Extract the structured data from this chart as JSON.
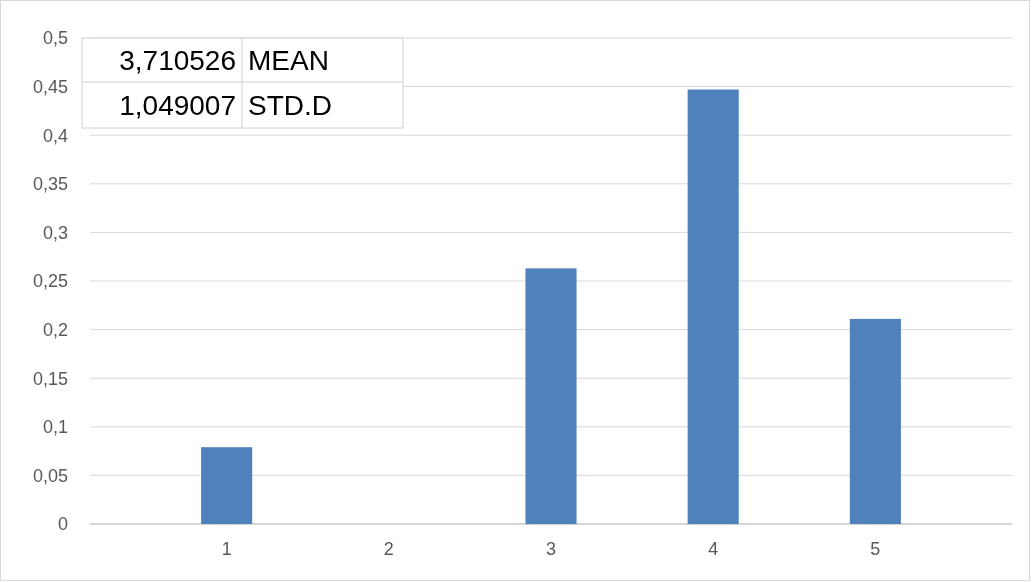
{
  "chart_data": {
    "type": "bar",
    "categories": [
      "1",
      "2",
      "3",
      "4",
      "5"
    ],
    "values": [
      0.079,
      0,
      0.263,
      0.447,
      0.211
    ],
    "color": "#4f81bd",
    "ylim": [
      0,
      0.5
    ],
    "yticks": [
      0,
      {
        "value": 0.05,
        "label": "0,05"
      },
      {
        "value": 0.1,
        "label": "0,1"
      },
      {
        "value": 0.15,
        "label": "0,15"
      },
      {
        "value": 0.2,
        "label": "0,2"
      },
      {
        "value": 0.25,
        "label": "0,25"
      },
      {
        "value": 0.3,
        "label": "0,3"
      },
      {
        "value": 0.35,
        "label": "0,35"
      },
      {
        "value": 0.4,
        "label": "0,4"
      },
      {
        "value": 0.45,
        "label": "0,45"
      },
      {
        "value": 0.5,
        "label": "0,5"
      }
    ],
    "grid": "y",
    "annotations": [
      "3,710526",
      "MEAN",
      "1,049007",
      "STD.D"
    ]
  }
}
